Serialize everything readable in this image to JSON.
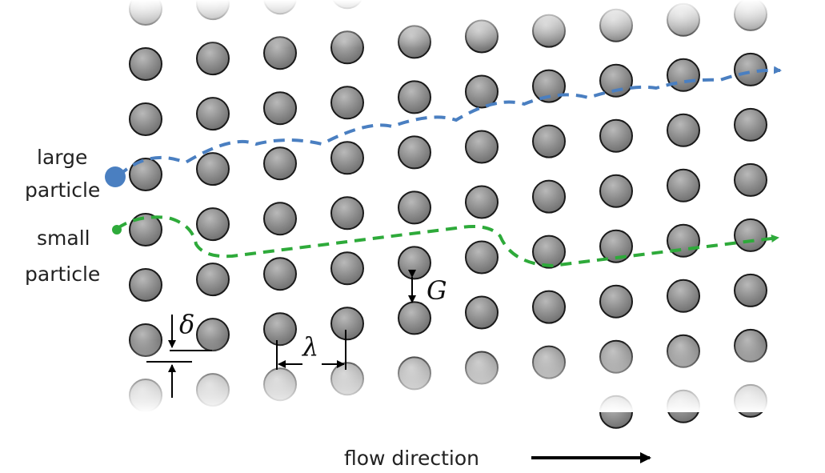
{
  "labels": {
    "large_line1": "large",
    "large_line2": "particle",
    "small_line1": "small",
    "small_line2": "particle",
    "flow": "flow direction"
  },
  "symbols": {
    "gap": "G",
    "shift": "δ",
    "pitch": "λ"
  },
  "colors": {
    "post_fill": "#8c8c8c",
    "post_stroke": "#1a1a1a",
    "large_path": "#4a7fc1",
    "small_path": "#2eaa3a",
    "dimension": "#000000"
  },
  "array": {
    "columns": 10,
    "row_shift_fraction": 0.1
  }
}
